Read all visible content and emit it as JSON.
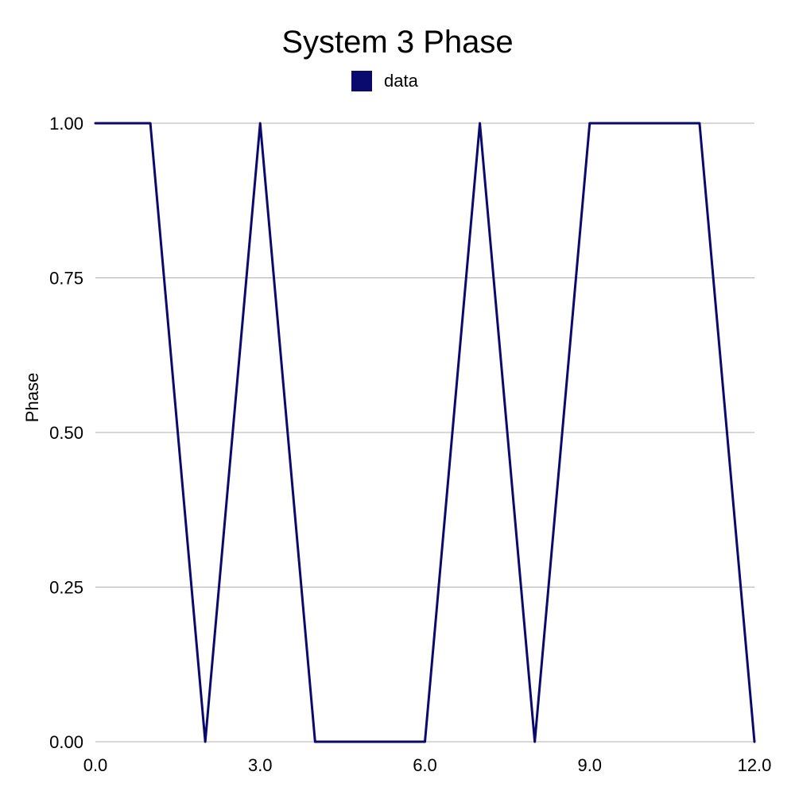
{
  "chart_data": {
    "type": "line",
    "title": "System 3 Phase",
    "xlabel": "",
    "ylabel": "Phase",
    "xlim": [
      0,
      12
    ],
    "ylim": [
      0,
      1
    ],
    "x_ticks": [
      "0.0",
      "3.0",
      "6.0",
      "9.0",
      "12.0"
    ],
    "x_tick_values": [
      0,
      3,
      6,
      9,
      12
    ],
    "y_ticks": [
      "0.00",
      "0.25",
      "0.50",
      "0.75",
      "1.00"
    ],
    "y_tick_values": [
      0,
      0.25,
      0.5,
      0.75,
      1
    ],
    "grid": "horizontal",
    "legend": {
      "placement": "top-center",
      "entries": [
        {
          "name": "data",
          "color": "#0a0a6e"
        }
      ]
    },
    "series": [
      {
        "name": "data",
        "color": "#0a0a6e",
        "x": [
          0,
          1,
          2,
          3,
          4,
          5,
          6,
          7,
          8,
          9,
          10,
          11,
          12
        ],
        "y": [
          1,
          1,
          0,
          1,
          0,
          0,
          0,
          1,
          0,
          1,
          1,
          1,
          0
        ]
      }
    ]
  }
}
